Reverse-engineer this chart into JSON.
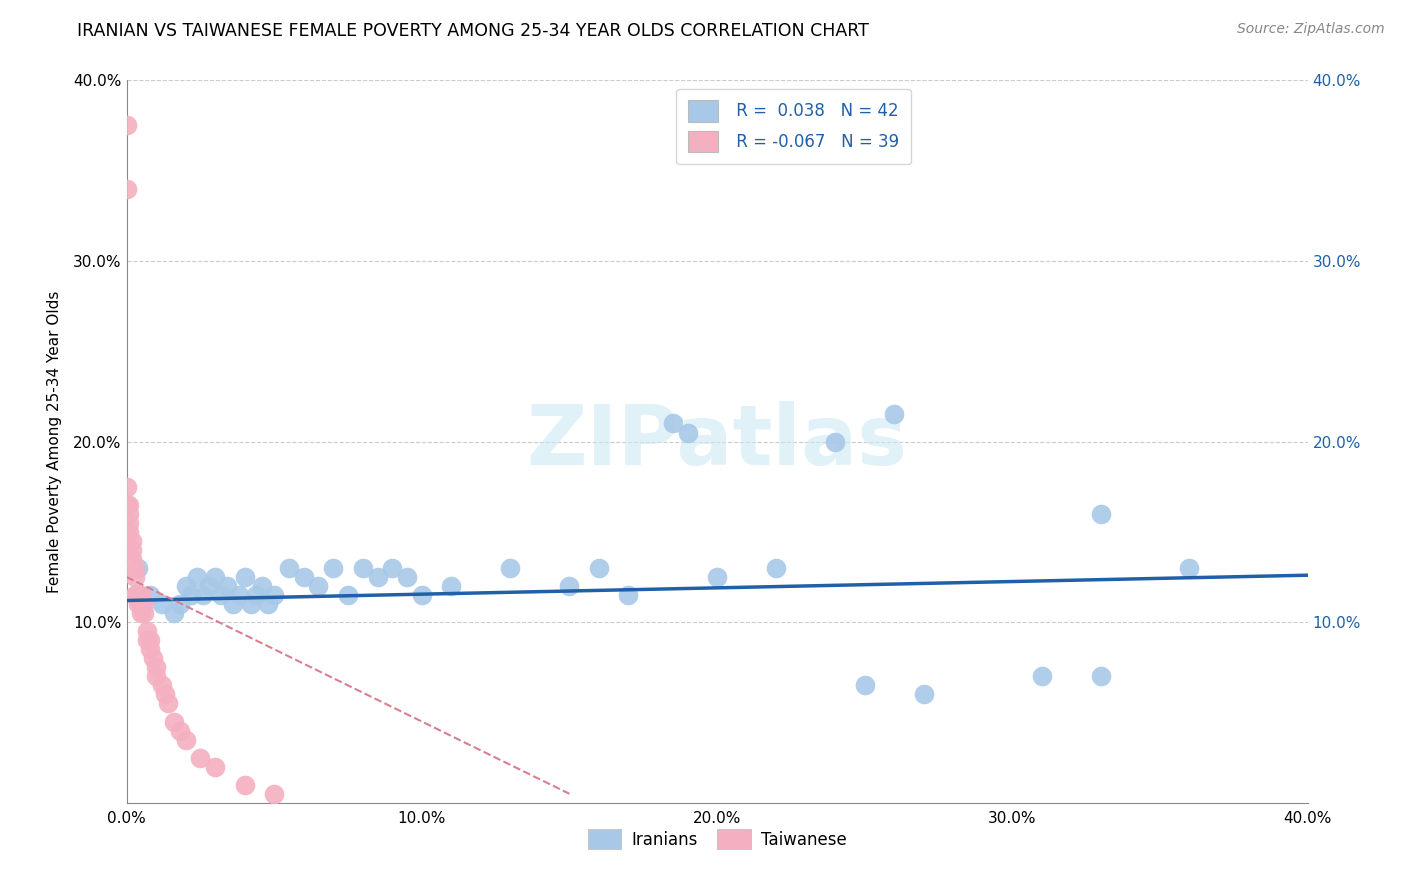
{
  "title": "IRANIAN VS TAIWANESE FEMALE POVERTY AMONG 25-34 YEAR OLDS CORRELATION CHART",
  "source": "Source: ZipAtlas.com",
  "ylabel": "Female Poverty Among 25-34 Year Olds",
  "xlim": [
    0,
    0.4
  ],
  "ylim": [
    0,
    0.4
  ],
  "xtick_vals": [
    0.0,
    0.1,
    0.2,
    0.3,
    0.4
  ],
  "xtick_labels": [
    "0.0%",
    "10.0%",
    "20.0%",
    "30.0%",
    "40.0%"
  ],
  "ytick_vals": [
    0.0,
    0.1,
    0.2,
    0.3,
    0.4
  ],
  "ytick_labels_left": [
    "",
    "10.0%",
    "20.0%",
    "30.0%",
    "40.0%"
  ],
  "ytick_vals_right": [
    0.1,
    0.2,
    0.3,
    0.4
  ],
  "ytick_labels_right": [
    "10.0%",
    "20.0%",
    "30.0%",
    "40.0%"
  ],
  "iranian_color": "#a8c8e8",
  "taiwanese_color": "#f4b0c0",
  "iranian_line_color": "#2060a8",
  "taiwanese_line_color": "#d88090",
  "legend_iranian_R": "0.038",
  "legend_iranian_N": "42",
  "legend_taiwanese_R": "-0.067",
  "legend_taiwanese_N": "39",
  "watermark": "ZIPatlas",
  "iranians_x": [
    0.004,
    0.008,
    0.012,
    0.016,
    0.018,
    0.02,
    0.022,
    0.024,
    0.026,
    0.028,
    0.03,
    0.032,
    0.034,
    0.036,
    0.038,
    0.04,
    0.042,
    0.044,
    0.046,
    0.048,
    0.05,
    0.055,
    0.06,
    0.065,
    0.07,
    0.075,
    0.08,
    0.085,
    0.09,
    0.095,
    0.1,
    0.11,
    0.13,
    0.15,
    0.16,
    0.17,
    0.2,
    0.22,
    0.24,
    0.26,
    0.33,
    0.36
  ],
  "iranians_y": [
    0.13,
    0.115,
    0.11,
    0.105,
    0.11,
    0.12,
    0.115,
    0.125,
    0.115,
    0.12,
    0.125,
    0.115,
    0.12,
    0.11,
    0.115,
    0.125,
    0.11,
    0.115,
    0.12,
    0.11,
    0.115,
    0.13,
    0.125,
    0.12,
    0.13,
    0.115,
    0.13,
    0.125,
    0.13,
    0.125,
    0.115,
    0.12,
    0.13,
    0.12,
    0.13,
    0.115,
    0.125,
    0.13,
    0.2,
    0.215,
    0.16,
    0.13
  ],
  "iranians_y_outliers": [
    0.21,
    0.205,
    0.07,
    0.07,
    0.06,
    0.065
  ],
  "iranians_x_outliers": [
    0.185,
    0.19,
    0.33,
    0.31,
    0.27,
    0.25
  ],
  "taiwanese_x": [
    0.0,
    0.0,
    0.0,
    0.0,
    0.001,
    0.001,
    0.001,
    0.001,
    0.002,
    0.002,
    0.002,
    0.003,
    0.003,
    0.003,
    0.003,
    0.004,
    0.004,
    0.005,
    0.005,
    0.005,
    0.006,
    0.006,
    0.007,
    0.007,
    0.008,
    0.008,
    0.009,
    0.01,
    0.01,
    0.012,
    0.013,
    0.014,
    0.016,
    0.018,
    0.02,
    0.025,
    0.03,
    0.04,
    0.05
  ],
  "taiwanese_y": [
    0.375,
    0.34,
    0.175,
    0.165,
    0.165,
    0.16,
    0.155,
    0.15,
    0.145,
    0.14,
    0.135,
    0.13,
    0.125,
    0.115,
    0.115,
    0.11,
    0.115,
    0.115,
    0.11,
    0.105,
    0.11,
    0.105,
    0.095,
    0.09,
    0.09,
    0.085,
    0.08,
    0.075,
    0.07,
    0.065,
    0.06,
    0.055,
    0.045,
    0.04,
    0.035,
    0.025,
    0.02,
    0.01,
    0.005
  ],
  "iranian_trend_x": [
    0.0,
    0.4
  ],
  "iranian_trend_y": [
    0.112,
    0.126
  ],
  "taiwanese_trend_x_start": 0.0,
  "taiwanese_trend_x_end": 0.15,
  "taiwanese_trend_y_start": 0.125,
  "taiwanese_trend_y_end": 0.005
}
